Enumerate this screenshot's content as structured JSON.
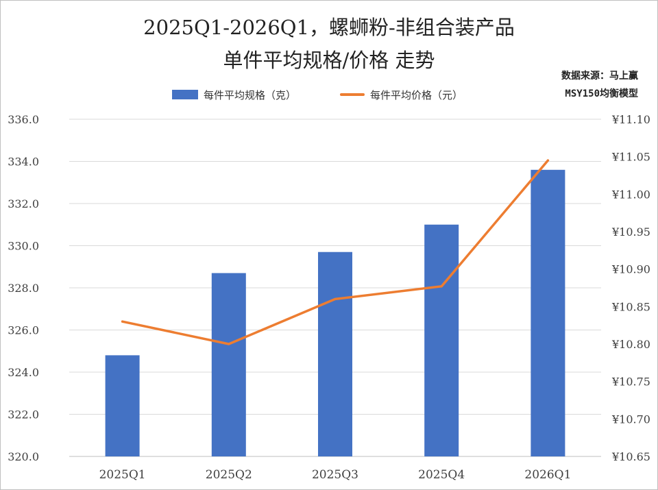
{
  "title_line1": "2025Q1-2026Q1，螺蛳粉-非组合装产品",
  "title_line2": "单件平均规格/价格 走势",
  "source_line1": "数据来源：马上赢",
  "source_line2": "MSY150均衡模型",
  "colors": {
    "bar": "#4472c4",
    "line": "#ed7d31",
    "grid": "#d9d9d9",
    "axis_text": "#404040"
  },
  "chart_data": {
    "type": "bar",
    "categories": [
      "2025Q1",
      "2025Q2",
      "2025Q3",
      "2025Q4",
      "2026Q1"
    ],
    "series": [
      {
        "name": "每件平均规格（克）",
        "type": "bar",
        "axis": "left",
        "values": [
          324.8,
          328.7,
          329.7,
          331.0,
          333.6
        ]
      },
      {
        "name": "每件平均价格（元）",
        "type": "line",
        "axis": "right",
        "values": [
          10.83,
          10.8,
          10.86,
          10.877,
          11.045
        ]
      }
    ],
    "y_left": {
      "min": 320,
      "max": 336,
      "ticks": [
        "320.0",
        "322.0",
        "324.0",
        "326.0",
        "328.0",
        "330.0",
        "332.0",
        "334.0",
        "336.0"
      ]
    },
    "y_right": {
      "min": 10.65,
      "max": 11.1,
      "ticks": [
        "¥10.65",
        "¥10.70",
        "¥10.75",
        "¥10.80",
        "¥10.85",
        "¥10.90",
        "¥10.95",
        "¥11.00",
        "¥11.05",
        "¥11.10"
      ]
    },
    "grid": true,
    "legend_position": "top"
  }
}
